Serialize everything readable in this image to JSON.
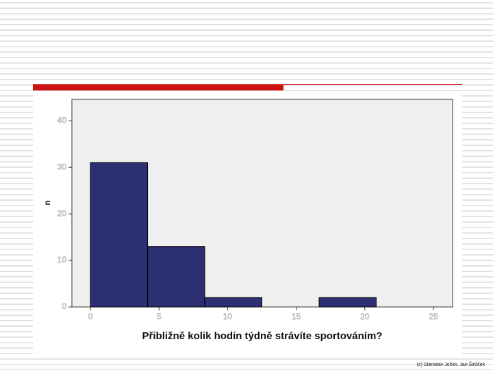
{
  "chart_data": {
    "type": "histogram",
    "x_label": "Přibližně kolik hodin týdně strávíte sportováním?",
    "y_label": "n",
    "bins": [
      0,
      4.17,
      8.33,
      12.5,
      16.67,
      20.83
    ],
    "values": [
      31,
      13,
      2,
      0,
      2
    ],
    "color": "#2c2f72",
    "xlim": [
      -1.35,
      26.4
    ],
    "ylim": [
      0,
      44.6
    ],
    "xticks": [
      0,
      5,
      10,
      15,
      20,
      25
    ],
    "yticks": [
      0,
      10,
      20,
      30,
      40
    ]
  },
  "footer": "(c) Stanislav Ježek, Jan Širůček"
}
